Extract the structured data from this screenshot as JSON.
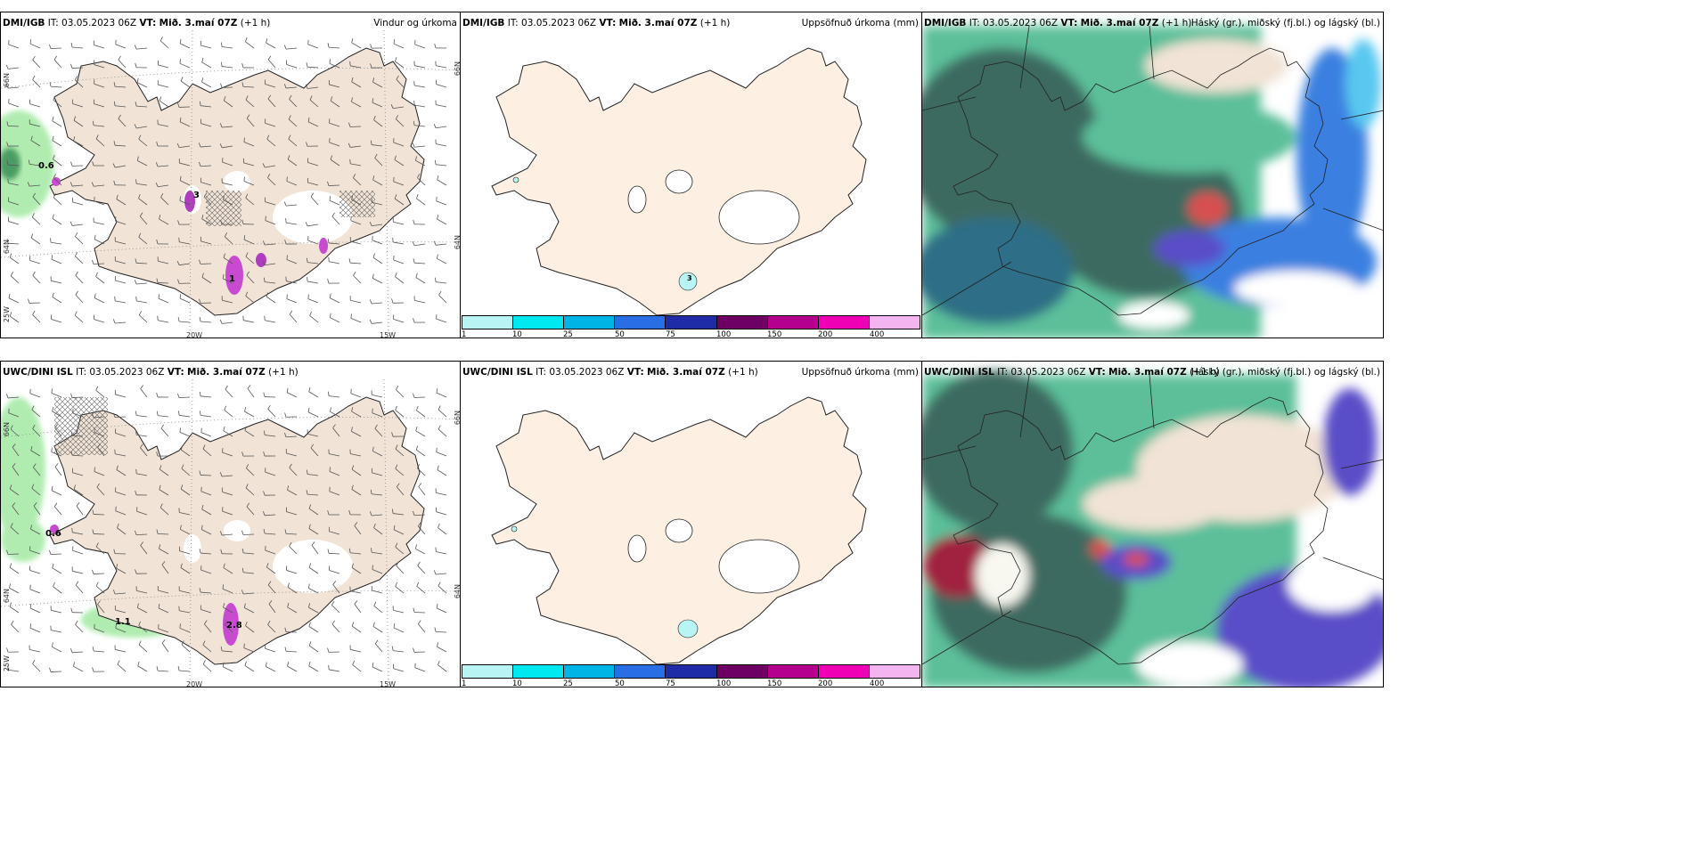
{
  "panels": [
    {
      "model": "DMI/IGB",
      "it_label": "IT:",
      "it": "03.05.2023 06Z",
      "vt_label": "VT:",
      "vt": "Mið. 3.maí 07Z",
      "lead": "(+1 h)",
      "product": "Vindur og úrkoma"
    },
    {
      "model": "DMI/IGB",
      "it_label": "IT:",
      "it": "03.05.2023 06Z",
      "vt_label": "VT:",
      "vt": "Mið. 3.maí 07Z",
      "lead": "(+1 h)",
      "product": "Uppsöfnuð úrkoma (mm)"
    },
    {
      "model": "DMI/IGB",
      "it_label": "IT:",
      "it": "03.05.2023 06Z",
      "vt_label": "VT:",
      "vt": "Mið. 3.maí 07Z",
      "lead": "(+1 h)",
      "product": "Háský (gr.), miðský (fj.bl.) og lágský (bl.)"
    },
    {
      "model": "UWC/DINI ISL",
      "it_label": "IT:",
      "it": "03.05.2023 06Z",
      "vt_label": "VT:",
      "vt": "Mið. 3.maí 07Z",
      "lead": "(+1 h)",
      "product": ""
    },
    {
      "model": "UWC/DINI ISL",
      "it_label": "IT:",
      "it": "03.05.2023 06Z",
      "vt_label": "VT:",
      "vt": "Mið. 3.maí 07Z",
      "lead": "(+1 h)",
      "product": "Uppsöfnuð úrkoma (mm)"
    },
    {
      "model": "UWC/DINI ISL",
      "it_label": "IT:",
      "it": "03.05.2023 06Z",
      "vt_label": "VT:",
      "vt": "Mið. 3.maí 07Z",
      "lead": "(+1 h)",
      "product": "Háský (gr.), miðský (fj.bl.) og lágský (bl.)"
    }
  ],
  "colorbar": {
    "ticks": [
      "1",
      "10",
      "25",
      "50",
      "75",
      "100",
      "150",
      "200",
      "400"
    ],
    "colors": [
      "#b8f4f4",
      "#00e8f0",
      "#00b4e6",
      "#2a6ee6",
      "#1e2ca8",
      "#6e0064",
      "#b4008c",
      "#f000b4",
      "#f4b4f0"
    ]
  },
  "grid_labels": {
    "lon": [
      "20W",
      "15W"
    ],
    "lat": [
      "66N",
      "64N"
    ],
    "lon_left": "25W"
  },
  "precip_values": {
    "p1a": "0.6",
    "p1b": "1",
    "p1c": "3",
    "p4a": "0.6",
    "p4b": "1.1",
    "p4c": "2.8",
    "p2a": "3"
  },
  "colors": {
    "land_wind": "#f1e3d5",
    "land_accum": "#fdf0e2",
    "precip_green": "#b0ecb0",
    "cloud_dark": "#3c6b60",
    "cloud_green": "#5cbf9a",
    "cloud_blue": "#3a80e0",
    "cloud_cyan": "#58c8f0",
    "cloud_red": "#d85050"
  }
}
